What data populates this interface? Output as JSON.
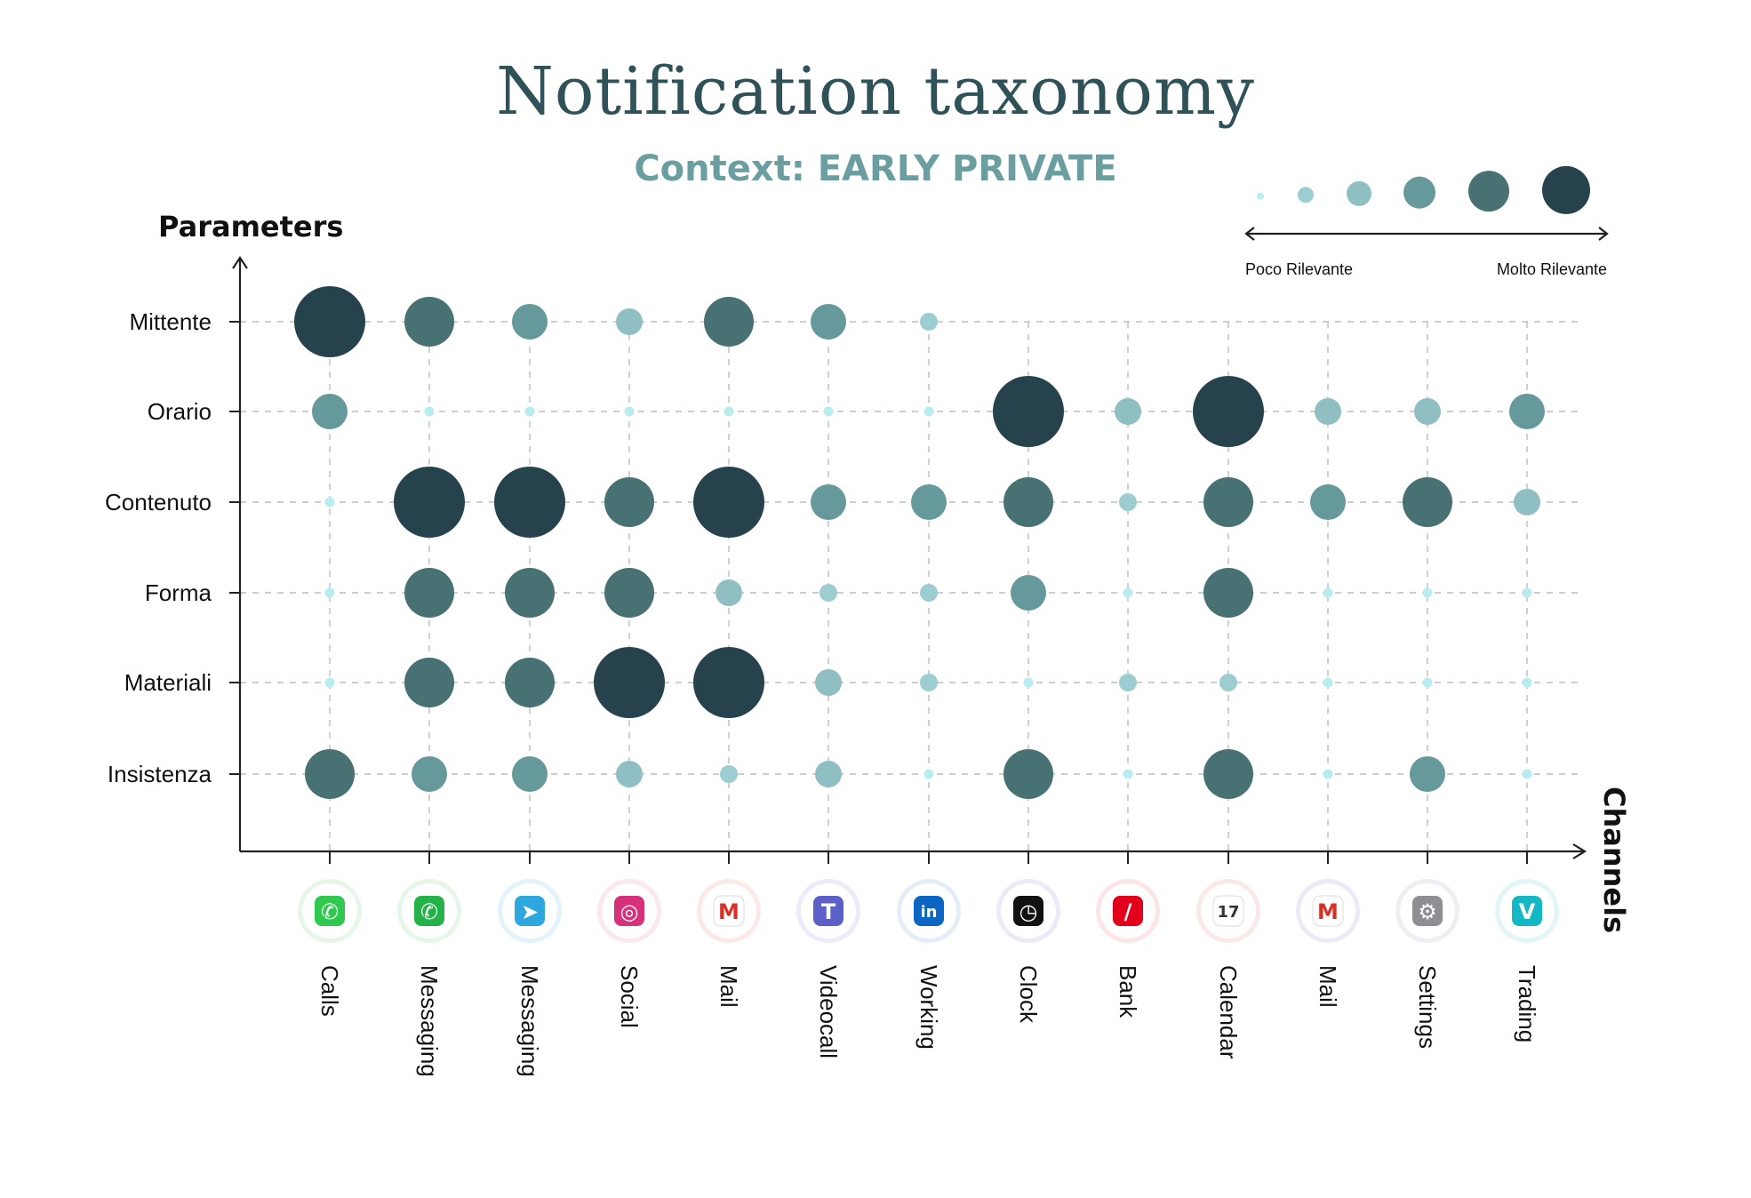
{
  "chart_data": {
    "type": "scatter",
    "title": "Notification taxonomy",
    "subtitle": "Context: EARLY PRIVATE",
    "ylabel": "Parameters",
    "xlabel": "Channels",
    "rows": [
      "Mittente",
      "Orario",
      "Contenuto",
      "Forma",
      "Materiali",
      "Insistenza"
    ],
    "columns": [
      "Calls",
      "Messaging",
      "Messaging",
      "Social",
      "Mail",
      "Videocall",
      "Working",
      "Clock",
      "Bank",
      "Calendar",
      "Mail",
      "Settings",
      "Trading"
    ],
    "scale": {
      "min": 1,
      "max": 6
    },
    "values": [
      [
        6,
        5,
        4,
        3,
        5,
        4,
        2,
        0,
        0,
        0,
        0,
        0,
        0
      ],
      [
        4,
        1,
        1,
        1,
        1,
        1,
        1,
        6,
        3,
        6,
        3,
        3,
        4
      ],
      [
        1,
        6,
        6,
        5,
        6,
        4,
        4,
        5,
        2,
        5,
        4,
        5,
        3
      ],
      [
        1,
        5,
        5,
        5,
        3,
        2,
        2,
        4,
        1,
        5,
        1,
        1,
        1
      ],
      [
        1,
        5,
        5,
        6,
        6,
        3,
        2,
        1,
        2,
        2,
        1,
        1,
        1
      ],
      [
        5,
        4,
        4,
        3,
        2,
        3,
        1,
        5,
        1,
        5,
        1,
        4,
        1
      ]
    ],
    "grid": true,
    "legend": {
      "position": "top-right",
      "low_label": "Poco Rilevante",
      "high_label": "Molto Rilevante",
      "levels": [
        1,
        2,
        3,
        4,
        5,
        6
      ]
    },
    "colors": [
      "#b9ecef",
      "#9ccdd1",
      "#90bfc3",
      "#66999b",
      "#487173",
      "#26424c"
    ]
  },
  "channel_icons": [
    {
      "name": "phone-icon",
      "bg": "#2fc94f",
      "fg": "#ffffff",
      "glyph": "✆",
      "halo": "#e6f7ea"
    },
    {
      "name": "whatsapp-icon",
      "bg": "#25b14a",
      "fg": "#ffffff",
      "glyph": "✆",
      "halo": "#e6f7ea"
    },
    {
      "name": "telegram-icon",
      "bg": "#2ea6de",
      "fg": "#ffffff",
      "glyph": "➤",
      "halo": "#e4f3fb"
    },
    {
      "name": "instagram-icon",
      "bg": "#d6317a",
      "fg": "#ffffff",
      "glyph": "◎",
      "halo": "#fbe7ef"
    },
    {
      "name": "gmail-icon",
      "bg": "#ffffff",
      "fg": "#d93025",
      "glyph": "M",
      "halo": "#fbe9e8"
    },
    {
      "name": "teams-icon",
      "bg": "#5b5fc7",
      "fg": "#ffffff",
      "glyph": "T",
      "halo": "#ecebf9"
    },
    {
      "name": "linkedin-icon",
      "bg": "#0a66c2",
      "fg": "#ffffff",
      "glyph": "in",
      "halo": "#e5eef8"
    },
    {
      "name": "clock-icon",
      "bg": "#111111",
      "fg": "#ffffff",
      "glyph": "◷",
      "halo": "#eee9f6"
    },
    {
      "name": "bank-icon",
      "bg": "#e3001b",
      "fg": "#ffffff",
      "glyph": "∕",
      "halo": "#fbe5e8"
    },
    {
      "name": "calendar-icon",
      "bg": "#ffffff",
      "fg": "#333333",
      "glyph": "17",
      "halo": "#fbe9e8"
    },
    {
      "name": "gmail-icon",
      "bg": "#ffffff",
      "fg": "#d93025",
      "glyph": "M",
      "halo": "#eee9f6"
    },
    {
      "name": "settings-icon",
      "bg": "#8e8e93",
      "fg": "#ffffff",
      "glyph": "⚙",
      "halo": "#efeef2"
    },
    {
      "name": "trading-icon",
      "bg": "#14b8c4",
      "fg": "#ffffff",
      "glyph": "V",
      "halo": "#e2f5f7"
    }
  ]
}
